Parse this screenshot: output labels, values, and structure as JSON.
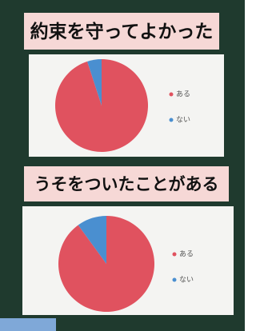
{
  "chart_data": [
    {
      "type": "pie",
      "title": "約束を守ってよかった",
      "categories": [
        "ある",
        "ない"
      ],
      "values": [
        95,
        5
      ],
      "colors": [
        "#e0525f",
        "#4a8fd0"
      ]
    },
    {
      "type": "pie",
      "title": "うそをついたことがある",
      "categories": [
        "ある",
        "ない"
      ],
      "values": [
        90,
        10
      ],
      "colors": [
        "#e0525f",
        "#4a8fd0"
      ]
    }
  ]
}
